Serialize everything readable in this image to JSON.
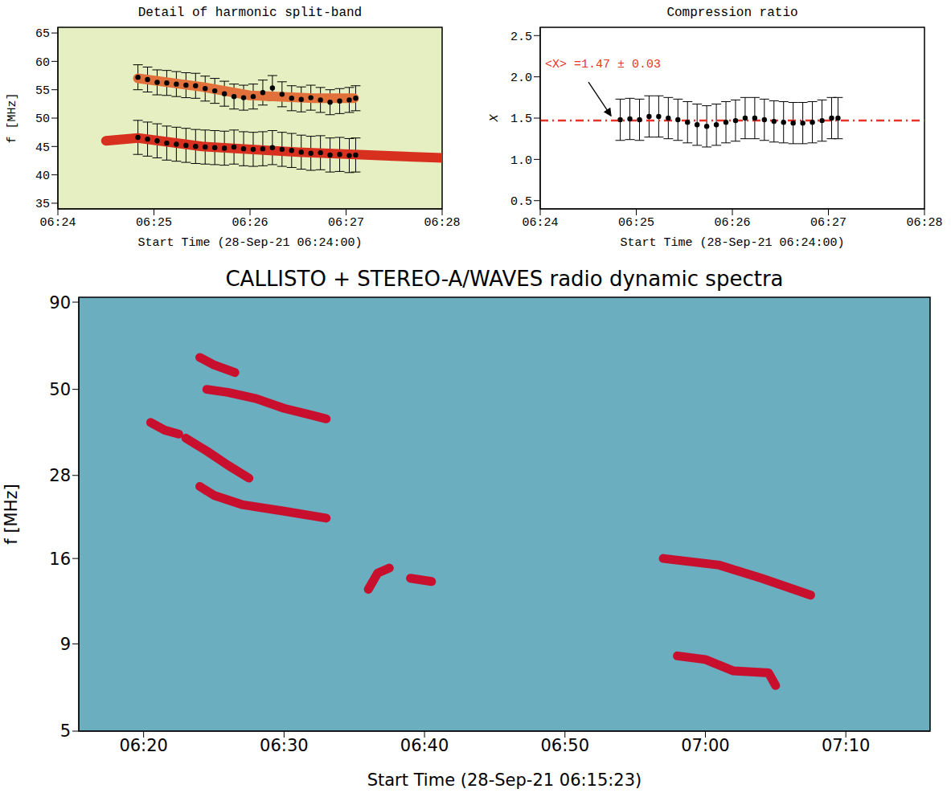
{
  "chart_data": [
    {
      "type": "scatter",
      "title": "Detail of harmonic split-band",
      "x_label": "Start Time (28-Sep-21 06:24:00)",
      "y_label": "f [MHz]",
      "xlim": [
        "06:24",
        "06:28"
      ],
      "xticks": [
        "06:24",
        "06:25",
        "06:26",
        "06:27",
        "06:28"
      ],
      "ylim": [
        34,
        66
      ],
      "yticks": [
        35,
        40,
        45,
        50,
        55,
        60,
        65
      ],
      "grid": false,
      "series": [
        {
          "type": "line",
          "color": "#d7301f",
          "x": [
            "06:24:30",
            "06:24:50",
            "06:25:30",
            "06:26:30",
            "06:27:30",
            "06:28:00"
          ],
          "values": [
            46,
            46.5,
            45,
            44,
            43.3,
            43
          ]
        },
        {
          "type": "line",
          "color": "#e2703a",
          "x": [
            "06:24:50",
            "06:25:30",
            "06:26:00",
            "06:26:40",
            "06:27:05"
          ],
          "values": [
            57,
            55.5,
            54,
            53.5,
            53.5
          ]
        },
        {
          "type": "scatter",
          "marker": "circle",
          "color": "#000000",
          "x": [
            "06:24:50",
            "06:24:56",
            "06:25:02",
            "06:25:08",
            "06:25:14",
            "06:25:20",
            "06:25:26",
            "06:25:32",
            "06:25:38",
            "06:25:44",
            "06:25:50",
            "06:25:56",
            "06:26:02",
            "06:26:08",
            "06:26:14",
            "06:26:20",
            "06:26:26",
            "06:26:32",
            "06:26:38",
            "06:26:44",
            "06:26:50",
            "06:26:56",
            "06:27:02",
            "06:27:06"
          ],
          "values": [
            57.2,
            56.8,
            56.3,
            56.2,
            56.0,
            55.8,
            55.7,
            55.2,
            54.8,
            54.3,
            53.8,
            53.6,
            53.8,
            54.5,
            55.3,
            54.2,
            53.5,
            53.3,
            53.6,
            53.2,
            52.8,
            53.0,
            53.2,
            53.5
          ],
          "errors": [
            2.2,
            2.2,
            2.2,
            2.2,
            2.2,
            2.2,
            2.2,
            2.2,
            2.2,
            2.2,
            2.2,
            2.2,
            2.2,
            2.2,
            2.2,
            2.2,
            2.2,
            2.2,
            2.2,
            2.2,
            2.2,
            2.2,
            2.2,
            2.2
          ]
        },
        {
          "type": "scatter",
          "marker": "circle",
          "color": "#000000",
          "x": [
            "06:24:50",
            "06:24:56",
            "06:25:02",
            "06:25:08",
            "06:25:14",
            "06:25:20",
            "06:25:26",
            "06:25:32",
            "06:25:38",
            "06:25:44",
            "06:25:50",
            "06:25:56",
            "06:26:02",
            "06:26:08",
            "06:26:14",
            "06:26:20",
            "06:26:26",
            "06:26:32",
            "06:26:38",
            "06:26:44",
            "06:26:50",
            "06:26:56",
            "06:27:02",
            "06:27:06"
          ],
          "values": [
            46.6,
            46.3,
            46.0,
            45.6,
            45.4,
            45.2,
            45.0,
            44.9,
            44.8,
            44.7,
            44.9,
            44.6,
            44.5,
            44.6,
            44.8,
            44.5,
            44.3,
            44.0,
            43.8,
            43.9,
            43.5,
            43.6,
            43.4,
            43.5
          ],
          "errors": [
            3.0,
            3.0,
            3.0,
            3.0,
            3.0,
            3.0,
            3.0,
            3.0,
            3.0,
            3.0,
            3.0,
            3.0,
            3.0,
            3.0,
            3.0,
            3.0,
            3.0,
            3.0,
            3.0,
            3.0,
            3.0,
            3.0,
            3.0,
            3.0
          ]
        }
      ]
    },
    {
      "type": "scatter",
      "title": "Compression ratio",
      "x_label": "Start Time (28-Sep-21 06:24:00)",
      "y_label": "X",
      "xlim": [
        "06:24",
        "06:28"
      ],
      "xticks": [
        "06:24",
        "06:25",
        "06:26",
        "06:27",
        "06:28"
      ],
      "ylim": [
        0.4,
        2.6
      ],
      "yticks": [
        0.5,
        {
          "value": 1,
          "label": "1.0"
        },
        1.5,
        {
          "value": 2,
          "label": "2.0"
        },
        2.5
      ],
      "grid": false,
      "reference_line": {
        "value": 1.47,
        "color": "#e8332a",
        "line_style": "dashdot",
        "label": "<X> =1.47 ± 0.03"
      },
      "series": [
        {
          "type": "scatter",
          "marker": "circle",
          "color": "#000000",
          "x": [
            "06:24:50",
            "06:24:56",
            "06:25:02",
            "06:25:08",
            "06:25:14",
            "06:25:20",
            "06:25:26",
            "06:25:32",
            "06:25:38",
            "06:25:44",
            "06:25:50",
            "06:25:56",
            "06:26:02",
            "06:26:08",
            "06:26:14",
            "06:26:20",
            "06:26:26",
            "06:26:32",
            "06:26:38",
            "06:26:44",
            "06:26:50",
            "06:26:56",
            "06:27:02",
            "06:27:06"
          ],
          "values": [
            1.48,
            1.49,
            1.48,
            1.52,
            1.52,
            1.5,
            1.48,
            1.45,
            1.42,
            1.4,
            1.42,
            1.45,
            1.47,
            1.5,
            1.5,
            1.48,
            1.46,
            1.45,
            1.44,
            1.44,
            1.45,
            1.47,
            1.5,
            1.5
          ],
          "errors": [
            0.25,
            0.25,
            0.25,
            0.25,
            0.25,
            0.25,
            0.25,
            0.25,
            0.25,
            0.25,
            0.25,
            0.25,
            0.25,
            0.25,
            0.25,
            0.25,
            0.25,
            0.25,
            0.25,
            0.25,
            0.25,
            0.25,
            0.25,
            0.25
          ]
        }
      ]
    },
    {
      "type": "line",
      "title": "CALLISTO + STEREO-A/WAVES radio dynamic spectra",
      "x_label": "Start Time (28-Sep-21 06:15:23)",
      "y_label": "f [MHz]",
      "xlim": [
        "06:15:23",
        "07:16:00"
      ],
      "xticks": [
        "06:20",
        "06:30",
        "06:40",
        "06:50",
        "07:00",
        "07:10"
      ],
      "ylim": [
        5,
        93
      ],
      "yticks": [
        5,
        9,
        16,
        28,
        50,
        90
      ],
      "log": "y",
      "grid": false,
      "series": [
        {
          "color": "#c8102e",
          "x": [
            "06:20:30",
            "06:21:30",
            "06:22:30"
          ],
          "values": [
            40,
            38,
            37
          ]
        },
        {
          "color": "#c8102e",
          "x": [
            "06:23:00",
            "06:24:30",
            "06:26:00",
            "06:27:30"
          ],
          "values": [
            36,
            33,
            30,
            27.5
          ]
        },
        {
          "color": "#c8102e",
          "x": [
            "06:24:00",
            "06:25:00",
            "06:26:30"
          ],
          "values": [
            62,
            59,
            56
          ]
        },
        {
          "color": "#c8102e",
          "x": [
            "06:24:30",
            "06:26:00",
            "06:28:00",
            "06:30:00",
            "06:32:00",
            "06:33:00"
          ],
          "values": [
            50,
            49,
            47,
            44,
            42,
            41
          ]
        },
        {
          "color": "#c8102e",
          "x": [
            "06:24:00",
            "06:25:00",
            "06:27:00",
            "06:30:00",
            "06:33:00"
          ],
          "values": [
            26,
            24.5,
            23,
            22,
            21
          ]
        },
        {
          "color": "#c8102e",
          "x": [
            "06:36:00",
            "06:36:40",
            "06:37:30"
          ],
          "values": [
            13,
            14.5,
            15
          ]
        },
        {
          "color": "#c8102e",
          "x": [
            "06:39:00",
            "06:40:30"
          ],
          "values": [
            14,
            13.7
          ]
        },
        {
          "color": "#c8102e",
          "x": [
            "06:57:00",
            "07:01:00",
            "07:04:00",
            "07:07:30"
          ],
          "values": [
            16,
            15.3,
            14,
            12.5
          ]
        },
        {
          "color": "#c8102e",
          "x": [
            "06:58:00",
            "07:00:00",
            "07:02:00",
            "07:04:30",
            "07:05:00"
          ],
          "values": [
            8.3,
            8.1,
            7.5,
            7.4,
            6.8
          ]
        }
      ]
    }
  ]
}
